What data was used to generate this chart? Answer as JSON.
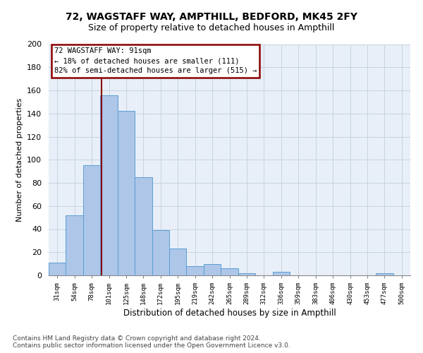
{
  "title_line1": "72, WAGSTAFF WAY, AMPTHILL, BEDFORD, MK45 2FY",
  "title_line2": "Size of property relative to detached houses in Ampthill",
  "xlabel": "Distribution of detached houses by size in Ampthill",
  "ylabel": "Number of detached properties",
  "categories": [
    "31sqm",
    "54sqm",
    "78sqm",
    "101sqm",
    "125sqm",
    "148sqm",
    "172sqm",
    "195sqm",
    "219sqm",
    "242sqm",
    "265sqm",
    "289sqm",
    "312sqm",
    "336sqm",
    "359sqm",
    "383sqm",
    "406sqm",
    "430sqm",
    "453sqm",
    "477sqm",
    "500sqm"
  ],
  "bar_values": [
    11,
    52,
    95,
    156,
    142,
    85,
    39,
    23,
    8,
    10,
    6,
    2,
    0,
    3,
    0,
    0,
    0,
    0,
    0,
    2,
    0
  ],
  "bar_color": "#aec6e8",
  "bar_edge_color": "#5a9fd4",
  "subject_line_color": "#8b0000",
  "annotation_box_color": "#8b0000",
  "annotation_line1": "72 WAGSTAFF WAY: 91sqm",
  "annotation_line2": "← 18% of detached houses are smaller (111)",
  "annotation_line3": "82% of semi-detached houses are larger (515) →",
  "ylim": [
    0,
    200
  ],
  "yticks": [
    0,
    20,
    40,
    60,
    80,
    100,
    120,
    140,
    160,
    180,
    200
  ],
  "footnote_line1": "Contains HM Land Registry data © Crown copyright and database right 2024.",
  "footnote_line2": "Contains public sector information licensed under the Open Government Licence v3.0.",
  "bg_color": "#ffffff",
  "plot_bg_color": "#e8eff8",
  "grid_color": "#c8d4e0"
}
